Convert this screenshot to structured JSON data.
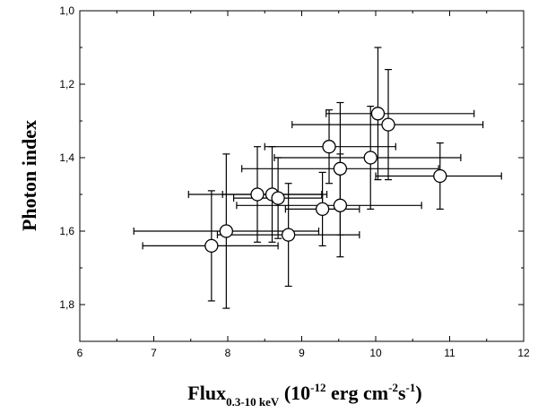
{
  "chart_data": {
    "type": "scatter",
    "title": "",
    "xlabel": {
      "main": "Flux",
      "subscript": "0.3-10 keV",
      "paren_open": " (10",
      "sup1": "-12",
      "mid": " erg cm",
      "sup2": "-2",
      "s": "s",
      "sup3": "-1",
      "paren_close": ")"
    },
    "ylabel": "Photon index",
    "xlim": [
      6,
      12
    ],
    "ylim": [
      1.0,
      1.9
    ],
    "y_inverted": true,
    "x_ticks": [
      "6",
      "7",
      "8",
      "9",
      "10",
      "11",
      "12"
    ],
    "y_ticks": [
      "1,0",
      "1,2",
      "1,4",
      "1,6",
      "1,8"
    ],
    "grid": false,
    "legend": "none",
    "marker": "open-circle",
    "points": [
      {
        "x": 10.03,
        "y": 1.28,
        "xerr": [
          0.7,
          1.3
        ],
        "yerr": [
          0.18,
          0.18
        ]
      },
      {
        "x": 10.17,
        "y": 1.31,
        "xerr": [
          1.3,
          1.28
        ],
        "yerr": [
          0.15,
          0.15
        ]
      },
      {
        "x": 9.37,
        "y": 1.37,
        "xerr": [
          0.87,
          0.9
        ],
        "yerr": [
          0.1,
          0.1
        ]
      },
      {
        "x": 9.93,
        "y": 1.4,
        "xerr": [
          1.3,
          1.22
        ],
        "yerr": [
          0.14,
          0.14
        ]
      },
      {
        "x": 9.52,
        "y": 1.43,
        "xerr": [
          1.33,
          1.33
        ],
        "yerr": [
          0.18,
          0.18
        ]
      },
      {
        "x": 10.87,
        "y": 1.45,
        "xerr": [
          0.87,
          0.83
        ],
        "yerr": [
          0.09,
          0.09
        ]
      },
      {
        "x": 8.4,
        "y": 1.5,
        "xerr": [
          0.93,
          0.94
        ],
        "yerr": [
          0.13,
          0.13
        ]
      },
      {
        "x": 8.6,
        "y": 1.5,
        "xerr": [
          0.67,
          0.67
        ],
        "yerr": [
          0.13,
          0.13
        ]
      },
      {
        "x": 8.68,
        "y": 1.51,
        "xerr": [
          0.6,
          0.6
        ],
        "yerr": [
          0.11,
          0.11
        ]
      },
      {
        "x": 9.28,
        "y": 1.54,
        "xerr": [
          0.5,
          0.5
        ],
        "yerr": [
          0.1,
          0.1
        ]
      },
      {
        "x": 9.52,
        "y": 1.53,
        "xerr": [
          1.4,
          1.1
        ],
        "yerr": [
          0.14,
          0.14
        ]
      },
      {
        "x": 7.98,
        "y": 1.6,
        "xerr": [
          1.25,
          1.25
        ],
        "yerr": [
          0.21,
          0.21
        ]
      },
      {
        "x": 8.82,
        "y": 1.61,
        "xerr": [
          0.96,
          0.96
        ],
        "yerr": [
          0.14,
          0.14
        ]
      },
      {
        "x": 7.78,
        "y": 1.64,
        "xerr": [
          0.93,
          0.9
        ],
        "yerr": [
          0.15,
          0.15
        ]
      }
    ]
  }
}
